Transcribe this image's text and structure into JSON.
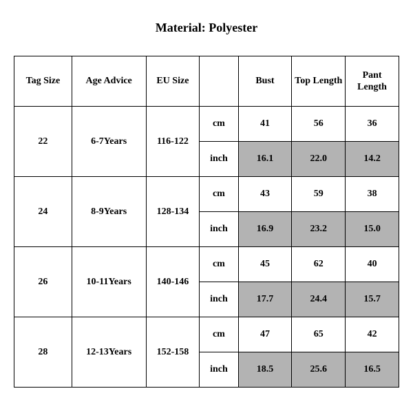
{
  "title": "Material: Polyester",
  "table": {
    "columns": [
      "Tag Size",
      "Age Advice",
      "EU Size",
      "",
      "Bust",
      "Top Length",
      "Pant Length"
    ],
    "units": {
      "cm": "cm",
      "inch": "inch"
    },
    "rows": [
      {
        "tag": "22",
        "age": "6-7Years",
        "eu": "116-122",
        "cm": {
          "bust": "41",
          "top": "56",
          "pant": "36"
        },
        "inch": {
          "bust": "16.1",
          "top": "22.0",
          "pant": "14.2"
        }
      },
      {
        "tag": "24",
        "age": "8-9Years",
        "eu": "128-134",
        "cm": {
          "bust": "43",
          "top": "59",
          "pant": "38"
        },
        "inch": {
          "bust": "16.9",
          "top": "23.2",
          "pant": "15.0"
        }
      },
      {
        "tag": "26",
        "age": "10-11Years",
        "eu": "140-146",
        "cm": {
          "bust": "45",
          "top": "62",
          "pant": "40"
        },
        "inch": {
          "bust": "17.7",
          "top": "24.4",
          "pant": "15.7"
        }
      },
      {
        "tag": "28",
        "age": "12-13Years",
        "eu": "152-158",
        "cm": {
          "bust": "47",
          "top": "65",
          "pant": "42"
        },
        "inch": {
          "bust": "18.5",
          "top": "25.6",
          "pant": "16.5"
        }
      }
    ],
    "style": {
      "shade_color": "#b3b3b3",
      "border_color": "#000000",
      "font_family": "Times New Roman",
      "font_weight": "bold",
      "header_fontsize": 14,
      "body_fontsize": 14,
      "title_fontsize": 18
    }
  }
}
